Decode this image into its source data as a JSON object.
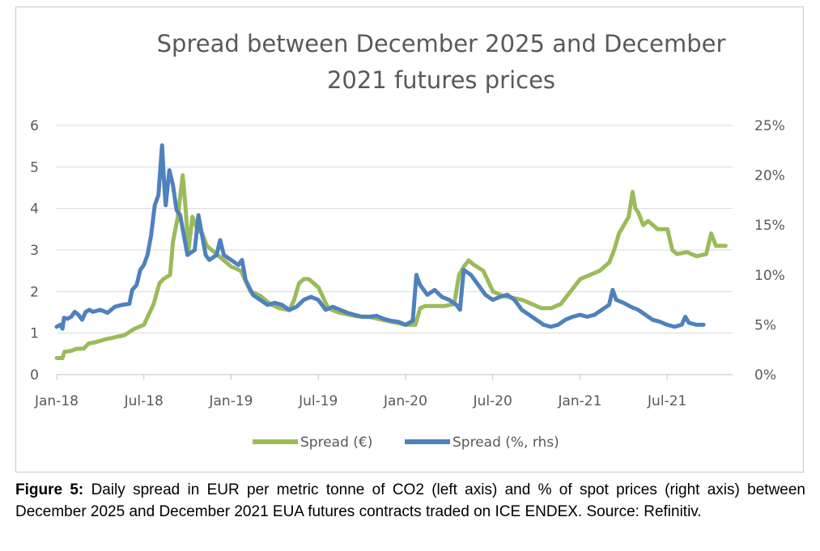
{
  "chart_data": {
    "type": "line",
    "title_lines": [
      "Spread between December 2025 and December",
      "2021 futures prices"
    ],
    "x_tick_labels": [
      "Jan-18",
      "Jul-18",
      "Jan-19",
      "Jul-19",
      "Jan-20",
      "Jul-20",
      "Jan-21",
      "Jul-21"
    ],
    "x_range_months": [
      0,
      46.5
    ],
    "y_left": {
      "ticks": [
        0,
        1,
        2,
        3,
        4,
        5,
        6
      ],
      "tick_labels": [
        "0",
        "1",
        "2",
        "3",
        "4",
        "5",
        "6"
      ],
      "range": [
        0,
        6
      ]
    },
    "y_right": {
      "ticks": [
        0,
        5,
        10,
        15,
        20,
        25
      ],
      "tick_labels": [
        "0%",
        "5%",
        "10%",
        "15%",
        "20%",
        "25%"
      ],
      "range": [
        0,
        25
      ]
    },
    "grid": "horizontal",
    "legend_position": "bottom",
    "series": [
      {
        "name": "Spread (€)",
        "axis": "left",
        "color": "#9bbb59",
        "points": [
          [
            0,
            0.4
          ],
          [
            0.6,
            0.4
          ],
          [
            0.8,
            0.55
          ],
          [
            1.5,
            0.57
          ],
          [
            2,
            0.62
          ],
          [
            2.8,
            0.63
          ],
          [
            3.3,
            0.75
          ],
          [
            4,
            0.78
          ],
          [
            5,
            0.85
          ],
          [
            6,
            0.9
          ],
          [
            7,
            0.95
          ],
          [
            8,
            1.1
          ],
          [
            9,
            1.2
          ],
          [
            10,
            1.7
          ],
          [
            10.6,
            2.2
          ],
          [
            11,
            2.3
          ],
          [
            11.7,
            2.4
          ],
          [
            12,
            3.2
          ],
          [
            12.5,
            3.8
          ],
          [
            13,
            4.8
          ],
          [
            13.3,
            4.0
          ],
          [
            13.6,
            3.0
          ],
          [
            14,
            3.8
          ],
          [
            14.5,
            3.5
          ],
          [
            15,
            3.4
          ],
          [
            15.5,
            3.1
          ],
          [
            16,
            3.0
          ],
          [
            17,
            2.8
          ],
          [
            18,
            2.6
          ],
          [
            19,
            2.5
          ],
          [
            20,
            2.0
          ],
          [
            21,
            1.9
          ],
          [
            22,
            1.7
          ],
          [
            23,
            1.6
          ],
          [
            24,
            1.55
          ],
          [
            24.5,
            1.8
          ],
          [
            25,
            2.2
          ],
          [
            25.5,
            2.3
          ],
          [
            26,
            2.3
          ],
          [
            27,
            2.1
          ],
          [
            28,
            1.6
          ],
          [
            29,
            1.5
          ],
          [
            30,
            1.45
          ],
          [
            31,
            1.4
          ],
          [
            32,
            1.4
          ],
          [
            33,
            1.35
          ],
          [
            34,
            1.3
          ],
          [
            35,
            1.25
          ],
          [
            36,
            1.2
          ],
          [
            37,
            1.2
          ],
          [
            37.5,
            1.6
          ],
          [
            38,
            1.65
          ],
          [
            39,
            1.65
          ],
          [
            40,
            1.65
          ],
          [
            41,
            1.7
          ],
          [
            41.5,
            2.4
          ],
          [
            42,
            2.6
          ],
          [
            42.5,
            2.75
          ],
          [
            43,
            2.65
          ],
          [
            44,
            2.5
          ],
          [
            45,
            2.0
          ],
          [
            46,
            1.9
          ],
          [
            47,
            1.85
          ],
          [
            48,
            1.8
          ],
          [
            49,
            1.7
          ],
          [
            50,
            1.6
          ],
          [
            51,
            1.6
          ],
          [
            52,
            1.7
          ],
          [
            53,
            2.0
          ],
          [
            54,
            2.3
          ],
          [
            55,
            2.4
          ],
          [
            56,
            2.5
          ],
          [
            57,
            2.7
          ],
          [
            57.5,
            3.0
          ],
          [
            58,
            3.4
          ],
          [
            58.5,
            3.6
          ],
          [
            59,
            3.8
          ],
          [
            59.4,
            4.4
          ],
          [
            59.7,
            4.0
          ],
          [
            60,
            3.9
          ],
          [
            60.5,
            3.6
          ],
          [
            61,
            3.7
          ],
          [
            62,
            3.5
          ],
          [
            63,
            3.5
          ],
          [
            63.5,
            3.0
          ],
          [
            64,
            2.9
          ],
          [
            65,
            2.95
          ],
          [
            66,
            2.85
          ],
          [
            67,
            2.9
          ],
          [
            67.5,
            3.4
          ],
          [
            68,
            3.1
          ],
          [
            69,
            3.1
          ]
        ]
      },
      {
        "name": "Spread (%, rhs)",
        "axis": "right",
        "color": "#4f81bd",
        "points": [
          [
            0,
            4.8
          ],
          [
            0.5,
            5.0
          ],
          [
            0.8,
            4.6
          ],
          [
            1,
            5.7
          ],
          [
            1.5,
            5.6
          ],
          [
            2,
            5.8
          ],
          [
            2.5,
            6.3
          ],
          [
            3,
            6.0
          ],
          [
            3.5,
            5.5
          ],
          [
            4,
            6.3
          ],
          [
            4.5,
            6.5
          ],
          [
            5,
            6.3
          ],
          [
            6,
            6.5
          ],
          [
            7,
            6.2
          ],
          [
            8,
            6.8
          ],
          [
            9,
            7.0
          ],
          [
            10,
            7.1
          ],
          [
            10.4,
            8.5
          ],
          [
            11,
            9.0
          ],
          [
            11.5,
            10.5
          ],
          [
            12,
            11.0
          ],
          [
            12.5,
            12.0
          ],
          [
            13,
            14.0
          ],
          [
            13.5,
            17.0
          ],
          [
            14,
            18.0
          ],
          [
            14.5,
            23.0
          ],
          [
            14.8,
            19.0
          ],
          [
            15,
            17.0
          ],
          [
            15.5,
            20.5
          ],
          [
            16,
            19.0
          ],
          [
            16.5,
            16.5
          ],
          [
            17,
            16.0
          ],
          [
            17.5,
            14.0
          ],
          [
            18,
            12.0
          ],
          [
            19,
            12.5
          ],
          [
            19.5,
            16.0
          ],
          [
            20,
            14.0
          ],
          [
            20.5,
            12.0
          ],
          [
            21,
            11.5
          ],
          [
            22,
            12.0
          ],
          [
            22.5,
            13.5
          ],
          [
            23,
            12.0
          ],
          [
            24,
            11.5
          ],
          [
            25,
            11.0
          ],
          [
            25.5,
            11.5
          ],
          [
            26,
            9.5
          ],
          [
            27,
            8.0
          ],
          [
            28,
            7.5
          ],
          [
            29,
            7.0
          ],
          [
            30,
            7.2
          ],
          [
            31,
            7.0
          ],
          [
            32,
            6.5
          ],
          [
            33,
            6.8
          ],
          [
            34,
            7.5
          ],
          [
            35,
            7.8
          ],
          [
            36,
            7.5
          ],
          [
            37,
            6.5
          ],
          [
            38,
            6.8
          ],
          [
            39,
            6.5
          ],
          [
            40,
            6.2
          ],
          [
            41,
            6.0
          ],
          [
            42,
            5.8
          ],
          [
            43,
            5.8
          ],
          [
            44,
            5.9
          ],
          [
            45,
            5.6
          ],
          [
            46,
            5.4
          ],
          [
            47,
            5.3
          ],
          [
            48,
            5.0
          ],
          [
            49,
            5.4
          ],
          [
            49.5,
            10.0
          ],
          [
            50,
            9.0
          ],
          [
            51,
            8.0
          ],
          [
            52,
            8.5
          ],
          [
            53,
            7.8
          ],
          [
            54,
            7.5
          ],
          [
            55,
            7.0
          ],
          [
            55.5,
            6.5
          ],
          [
            56,
            10.5
          ],
          [
            57,
            10.0
          ],
          [
            58,
            9.0
          ],
          [
            59,
            8.0
          ],
          [
            60,
            7.5
          ],
          [
            61,
            7.8
          ],
          [
            62,
            8.0
          ],
          [
            63,
            7.5
          ],
          [
            64,
            6.5
          ],
          [
            65,
            6.0
          ],
          [
            66,
            5.5
          ],
          [
            67,
            5.0
          ],
          [
            68,
            4.8
          ],
          [
            69,
            5.0
          ],
          [
            70,
            5.5
          ],
          [
            71,
            5.8
          ],
          [
            72,
            6.0
          ],
          [
            73,
            5.8
          ],
          [
            74,
            6.0
          ],
          [
            75,
            6.5
          ],
          [
            76,
            7.0
          ],
          [
            76.5,
            8.5
          ],
          [
            77,
            7.5
          ],
          [
            78,
            7.2
          ],
          [
            79,
            6.8
          ],
          [
            80,
            6.5
          ],
          [
            81,
            6.0
          ],
          [
            82,
            5.5
          ],
          [
            83,
            5.3
          ],
          [
            84,
            5.0
          ],
          [
            85,
            4.8
          ],
          [
            86,
            5.0
          ],
          [
            86.5,
            5.8
          ],
          [
            87,
            5.2
          ],
          [
            88,
            5.0
          ],
          [
            89,
            5.0
          ]
        ]
      }
    ]
  },
  "caption": {
    "label": "Figure 5:",
    "text": " Daily spread in EUR per metric tonne of CO2 (left axis) and % of spot prices (right axis) between December 2025 and December 2021 EUA futures contracts traded on ICE ENDEX. Source: Refinitiv."
  }
}
